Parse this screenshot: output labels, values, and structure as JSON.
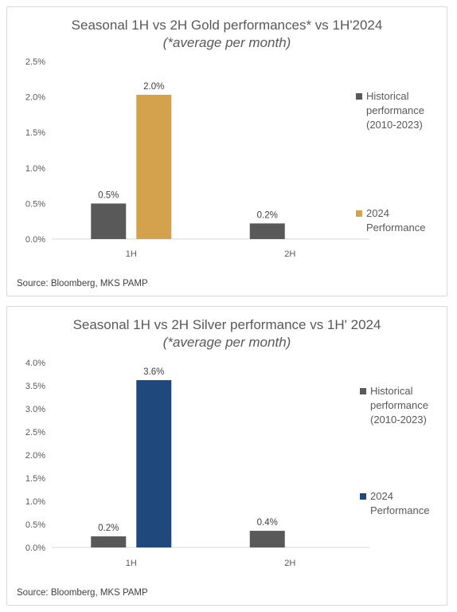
{
  "chart_data": [
    {
      "type": "bar",
      "title": "Seasonal 1H vs 2H Gold performances*  vs 1H'2024",
      "subtitle": "(*average per month)",
      "categories": [
        "1H",
        "2H"
      ],
      "ylim": [
        0,
        0.025
      ],
      "yticks": [
        "0.0%",
        "0.5%",
        "1.0%",
        "1.5%",
        "2.0%",
        "2.5%"
      ],
      "ytick_values": [
        0,
        0.005,
        0.01,
        0.015,
        0.02,
        0.025
      ],
      "grid": false,
      "legend_position": "right",
      "series": [
        {
          "name_lines": [
            "Historical",
            "performance",
            "(2010-2023)"
          ],
          "color": "#595959",
          "values": [
            0.005,
            0.0022
          ],
          "labels": [
            "0.5%",
            "0.2%"
          ]
        },
        {
          "name_lines": [
            "2024",
            "Performance"
          ],
          "color": "#D4A24C",
          "values": [
            0.0203,
            null
          ],
          "labels": [
            "2.0%",
            ""
          ]
        }
      ],
      "source": "Source: Bloomberg, MKS PAMP"
    },
    {
      "type": "bar",
      "title": "Seasonal 1H vs 2H Silver performance  vs 1H' 2024",
      "subtitle": "(*average per month)",
      "categories": [
        "1H",
        "2H"
      ],
      "ylim": [
        0,
        0.04
      ],
      "yticks": [
        "0.0%",
        "0.5%",
        "1.0%",
        "1.5%",
        "2.0%",
        "2.5%",
        "3.0%",
        "3.5%",
        "4.0%"
      ],
      "ytick_values": [
        0,
        0.005,
        0.01,
        0.015,
        0.02,
        0.025,
        0.03,
        0.035,
        0.04
      ],
      "grid": false,
      "legend_position": "right",
      "series": [
        {
          "name_lines": [
            "Historical",
            "performance",
            "(2010-2023)"
          ],
          "color": "#595959",
          "values": [
            0.0024,
            0.0036
          ],
          "labels": [
            "0.2%",
            "0.4%"
          ]
        },
        {
          "name_lines": [
            "2024",
            "Performance"
          ],
          "color": "#1F497D",
          "values": [
            0.0362,
            null
          ],
          "labels": [
            "3.6%",
            ""
          ]
        }
      ],
      "source": "Source: Bloomberg, MKS PAMP"
    }
  ]
}
